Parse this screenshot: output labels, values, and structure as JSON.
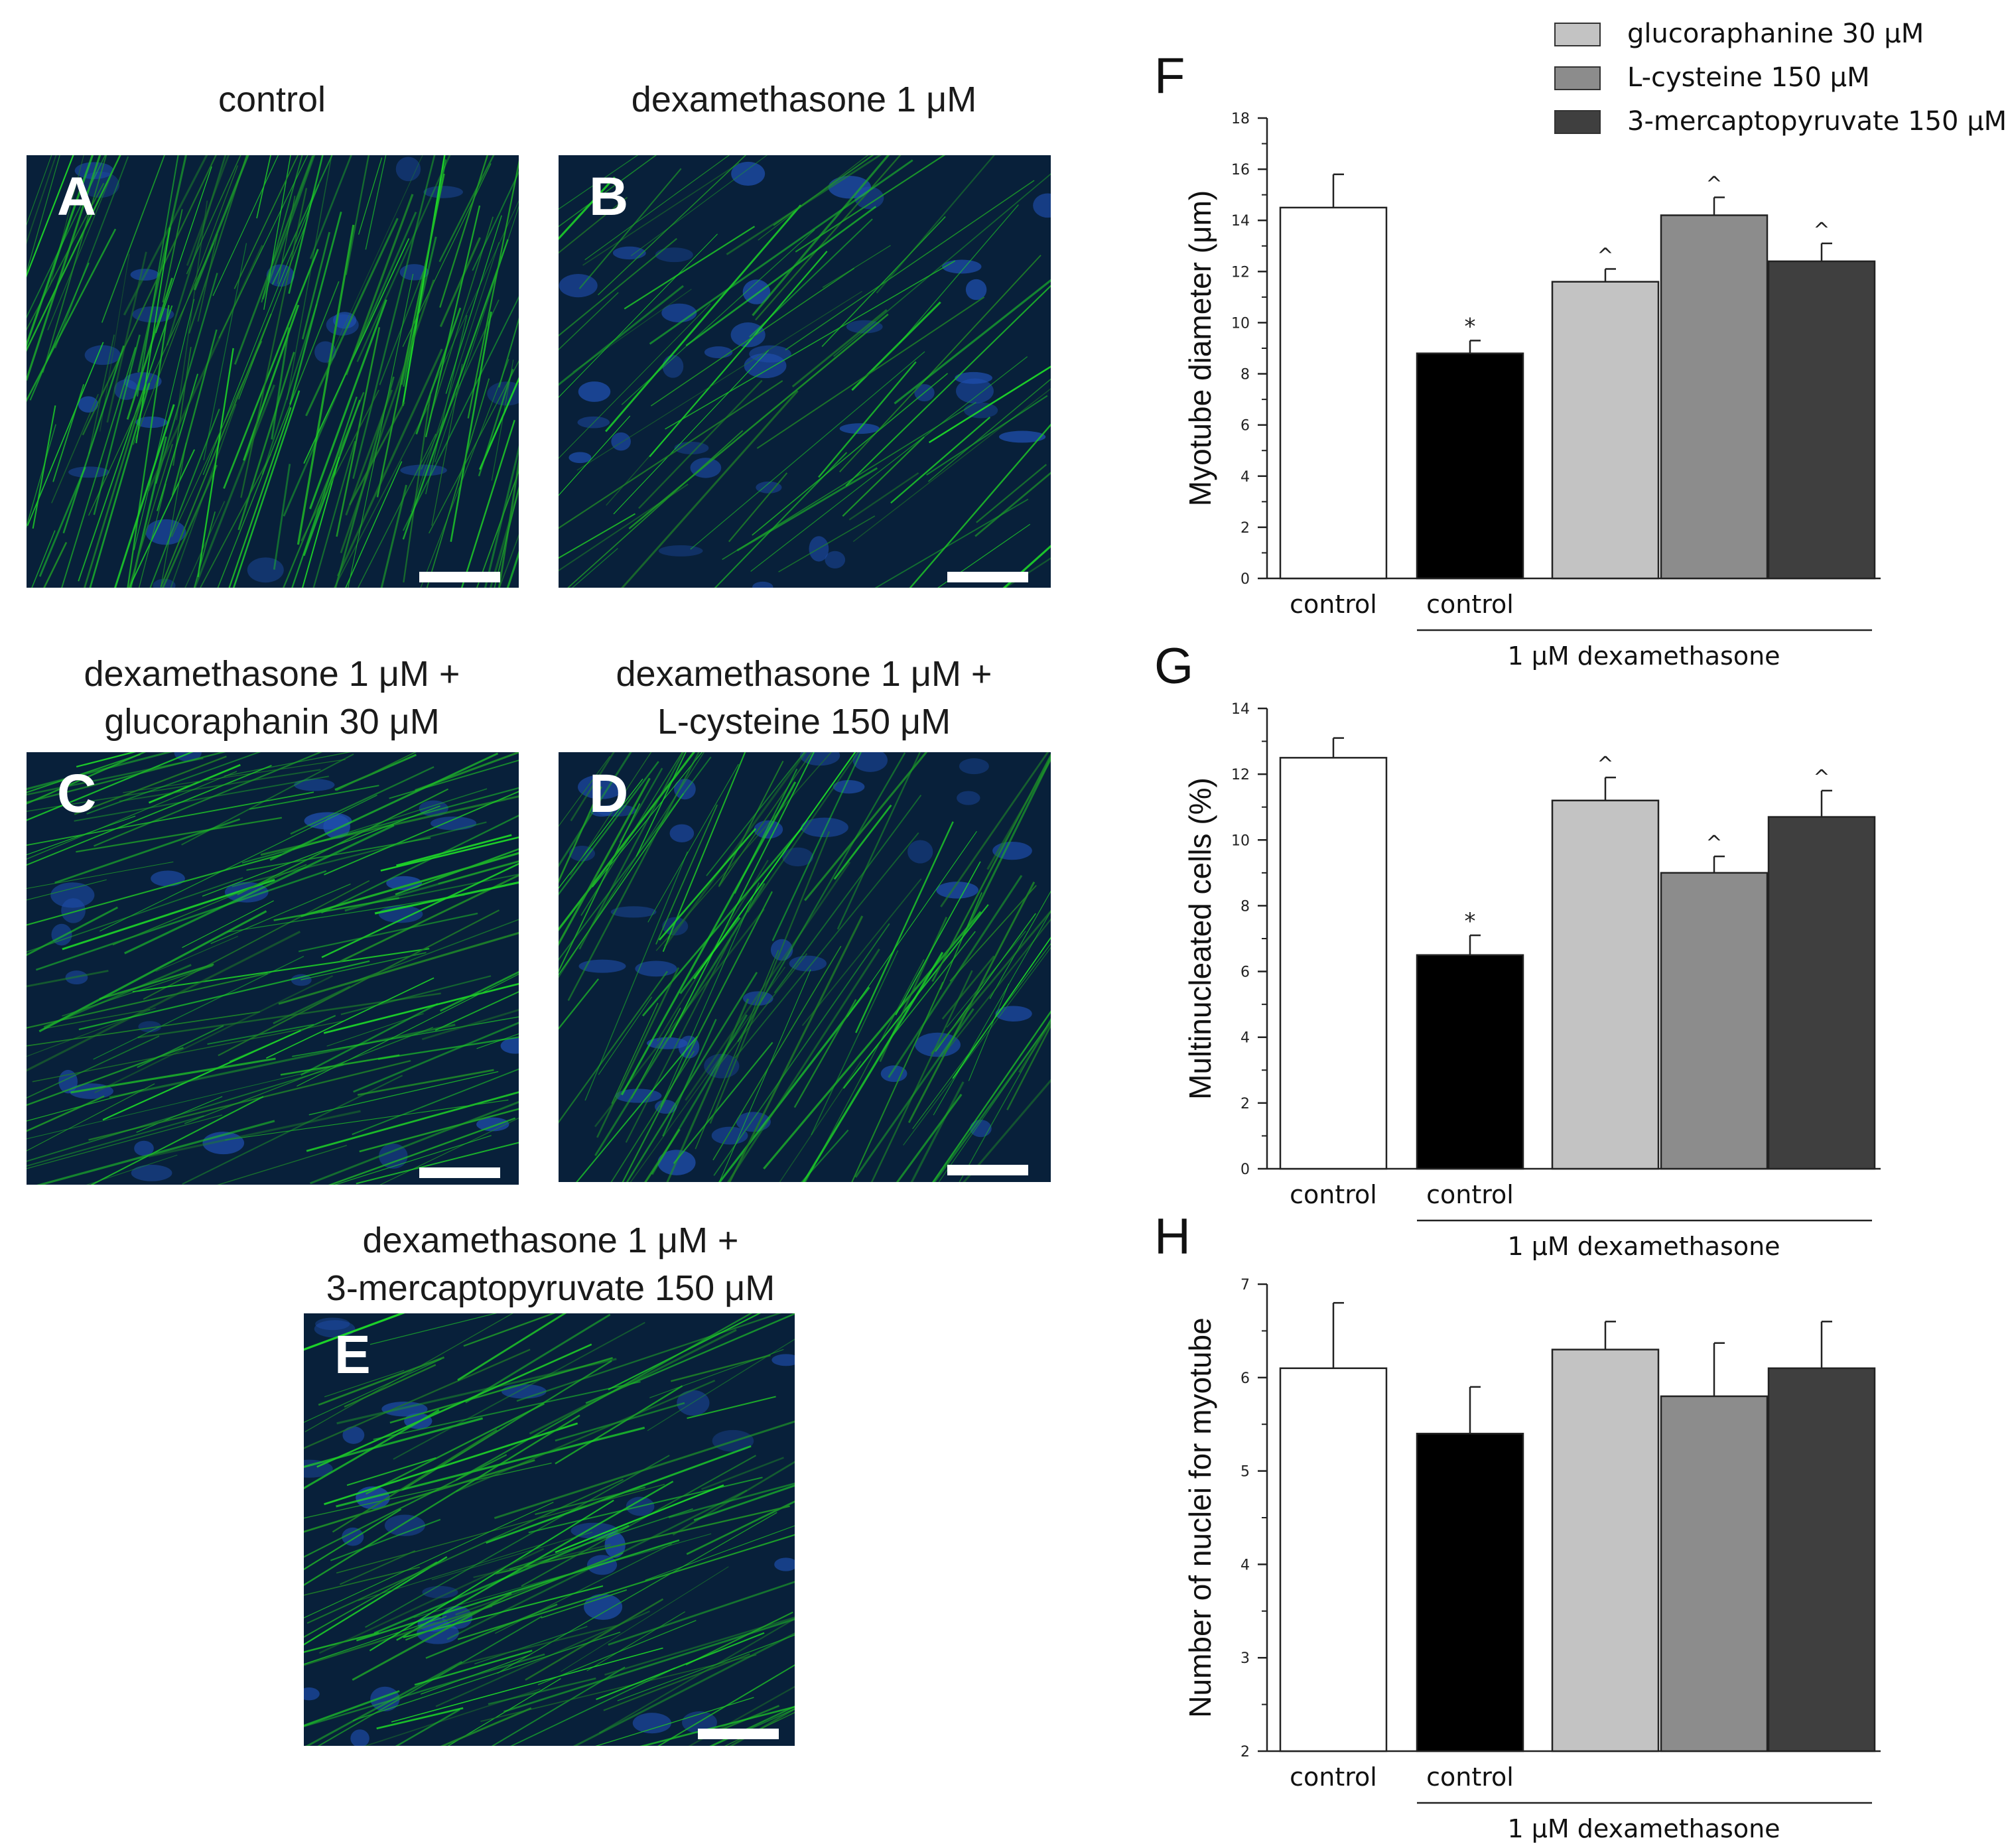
{
  "panels": [
    {
      "letter": "A",
      "title_lines": [
        "control"
      ],
      "seed": 11,
      "angle": -72,
      "fiber_density": 1.0,
      "nuclei_intensity": 0.55
    },
    {
      "letter": "B",
      "title_lines": [
        "dexamethasone 1 μM"
      ],
      "seed": 23,
      "angle": -40,
      "fiber_density": 0.45,
      "nuclei_intensity": 0.85
    },
    {
      "letter": "C",
      "title_lines": [
        "dexamethasone 1 μM +",
        "glucoraphanin 30 μM"
      ],
      "seed": 37,
      "angle": -18,
      "fiber_density": 0.8,
      "nuclei_intensity": 0.6
    },
    {
      "letter": "D",
      "title_lines": [
        "dexamethasone 1 μM +",
        "L-cysteine 150 μM"
      ],
      "seed": 53,
      "angle": -58,
      "fiber_density": 0.7,
      "nuclei_intensity": 0.9
    },
    {
      "letter": "E",
      "title_lines": [
        "dexamethasone 1 μM +",
        "3-mercaptopyruvate 150 μM"
      ],
      "seed": 71,
      "angle": -22,
      "fiber_density": 0.75,
      "nuclei_intensity": 0.7
    }
  ],
  "legend": [
    {
      "label": "glucoraphanine 30 μM",
      "color": "#c3c3c3"
    },
    {
      "label": "L-cysteine 150 μM",
      "color": "#8c8c8c"
    },
    {
      "label": "3-mercaptopyruvate 150 μM",
      "color": "#3f3f3f"
    }
  ],
  "chart_data": [
    {
      "panel_letter": "F",
      "type": "bar",
      "ylabel": "Myotube diameter (μm)",
      "ylim": [
        0,
        18
      ],
      "yticks": [
        0,
        2,
        4,
        6,
        8,
        10,
        12,
        14,
        16,
        18
      ],
      "categories": [
        "control",
        "control",
        "glucoraphanine 30 μM",
        "L-cysteine 150 μM",
        "3-mercaptopyruvate 150 μM"
      ],
      "category_labels": [
        "control",
        "control",
        "",
        "",
        ""
      ],
      "values": [
        14.5,
        8.8,
        11.6,
        14.2,
        12.4
      ],
      "errors": [
        1.3,
        0.5,
        0.5,
        0.7,
        0.7
      ],
      "significance": [
        "",
        "*",
        "^",
        "^",
        "^"
      ],
      "colors": [
        "#ffffff",
        "#000000",
        "#c3c3c3",
        "#8c8c8c",
        "#3f3f3f"
      ],
      "group_label": "1 μM  dexamethasone",
      "grid": false
    },
    {
      "panel_letter": "G",
      "type": "bar",
      "ylabel": "Multinucleated cells (%)",
      "ylim": [
        0,
        14
      ],
      "yticks": [
        0,
        2,
        4,
        6,
        8,
        10,
        12,
        14
      ],
      "categories": [
        "control",
        "control",
        "glucoraphanine 30 μM",
        "L-cysteine 150 μM",
        "3-mercaptopyruvate 150 μM"
      ],
      "category_labels": [
        "control",
        "control",
        "",
        "",
        ""
      ],
      "values": [
        12.5,
        6.5,
        11.2,
        9.0,
        10.7
      ],
      "errors": [
        0.6,
        0.6,
        0.7,
        0.5,
        0.8
      ],
      "significance": [
        "",
        "*",
        "^",
        "^",
        "^"
      ],
      "colors": [
        "#ffffff",
        "#000000",
        "#c3c3c3",
        "#8c8c8c",
        "#3f3f3f"
      ],
      "group_label": "1 μM  dexamethasone",
      "grid": false
    },
    {
      "panel_letter": "H",
      "type": "bar",
      "ylabel": "Number of nuclei for myotube",
      "ylim": [
        2,
        7
      ],
      "yticks": [
        2,
        3,
        4,
        5,
        6,
        7
      ],
      "categories": [
        "control",
        "control",
        "glucoraphanine 30 μM",
        "L-cysteine 150 μM",
        "3-mercaptopyruvate 150 μM"
      ],
      "category_labels": [
        "control",
        "control",
        "",
        "",
        ""
      ],
      "values": [
        6.1,
        5.4,
        6.3,
        5.8,
        6.1
      ],
      "errors": [
        0.7,
        0.5,
        0.3,
        0.57,
        0.5
      ],
      "significance": [
        "",
        "",
        "",
        "",
        ""
      ],
      "colors": [
        "#ffffff",
        "#000000",
        "#c3c3c3",
        "#8c8c8c",
        "#3f3f3f"
      ],
      "group_label": "1 μM  dexamethasone",
      "grid": false
    }
  ]
}
